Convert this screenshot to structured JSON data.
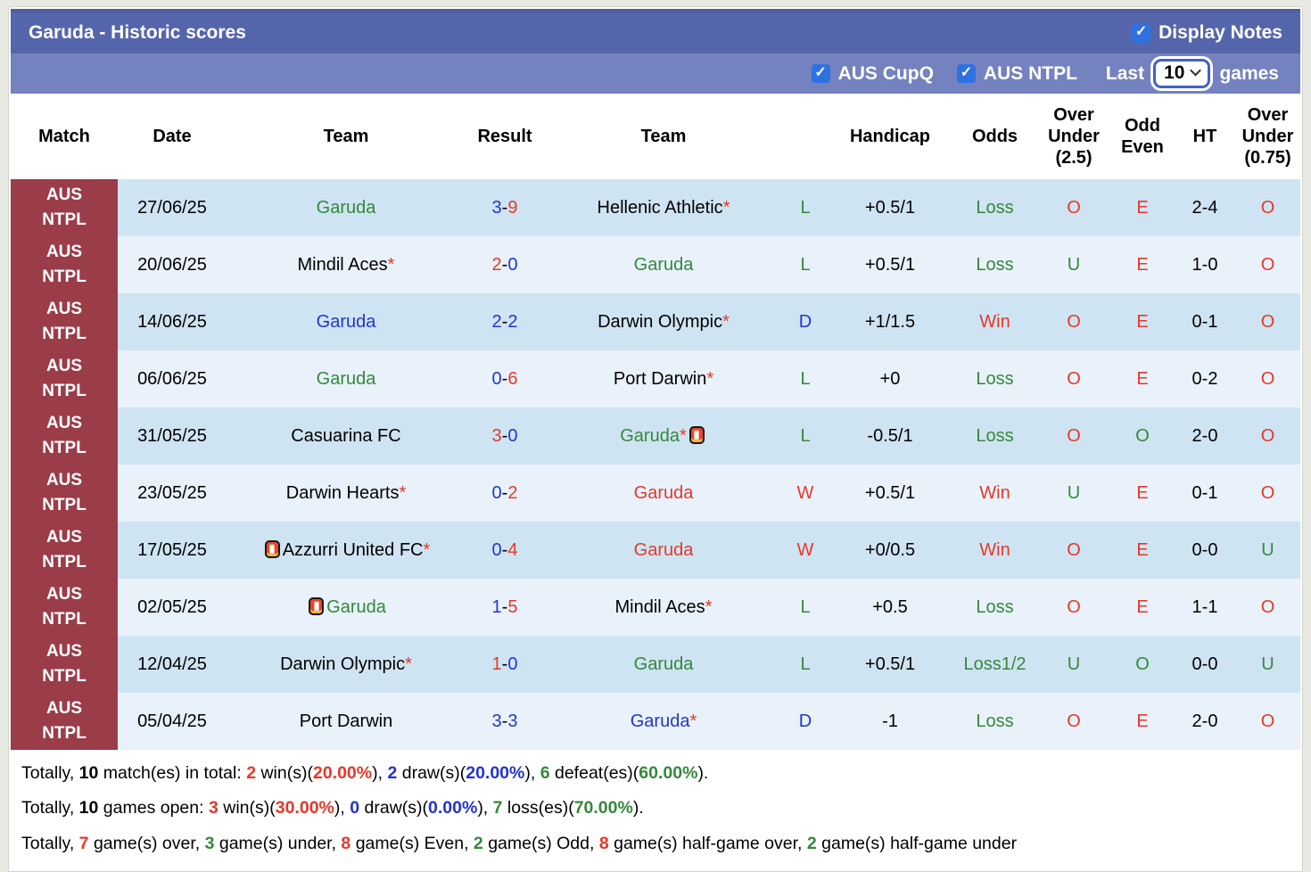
{
  "title_bar": {
    "title": "Garuda - Historic scores",
    "display_notes_label": "Display Notes",
    "display_notes_checked": true
  },
  "filter_bar": {
    "checkboxes": [
      {
        "label": "AUS CupQ",
        "checked": true
      },
      {
        "label": "AUS NTPL",
        "checked": true
      }
    ],
    "last_label": "Last",
    "games_count": "10",
    "games_label": "games"
  },
  "colors": {
    "red": "#e5382a",
    "green": "#35873c",
    "blue": "#2235cc",
    "black": "#000000",
    "badge_maroon": "#9b3c49",
    "title_bar_purple": "#5565ab",
    "filter_bar_purple": "#7482bf",
    "checkbox_blue": "#2e71e2",
    "row_odd": "#cfe4f2",
    "row_even": "#e9f2fa"
  },
  "table": {
    "headers": [
      "Match",
      "Date",
      "Team",
      "Result",
      "Team",
      "",
      "Handicap",
      "Odds",
      "Over\nUnder\n(2.5)",
      "Odd\nEven",
      "HT",
      "Over\nUnder\n(0.75)"
    ],
    "rows": [
      {
        "league": "AUS\nNTPL",
        "date": "27/06/25",
        "team1": {
          "text": "Garuda",
          "color": "green",
          "star": false,
          "card": "none"
        },
        "result": {
          "home": "3",
          "away": "9",
          "home_color": "blue",
          "away_color": "red"
        },
        "team2": {
          "text": "Hellenic Athletic",
          "color": "black",
          "star": true,
          "card": "none"
        },
        "wdl": {
          "text": "L",
          "color": "green"
        },
        "handicap": "+0.5/1",
        "odds": {
          "text": "Loss",
          "color": "green"
        },
        "over_under_25": {
          "text": "O",
          "color": "red"
        },
        "odd_even": {
          "text": "E",
          "color": "red"
        },
        "ht": "2-4",
        "over_under_075": {
          "text": "O",
          "color": "red"
        }
      },
      {
        "league": "AUS\nNTPL",
        "date": "20/06/25",
        "team1": {
          "text": "Mindil Aces",
          "color": "black",
          "star": true,
          "card": "none"
        },
        "result": {
          "home": "2",
          "away": "0",
          "home_color": "red",
          "away_color": "blue"
        },
        "team2": {
          "text": "Garuda",
          "color": "green",
          "star": false,
          "card": "none"
        },
        "wdl": {
          "text": "L",
          "color": "green"
        },
        "handicap": "+0.5/1",
        "odds": {
          "text": "Loss",
          "color": "green"
        },
        "over_under_25": {
          "text": "U",
          "color": "green"
        },
        "odd_even": {
          "text": "E",
          "color": "red"
        },
        "ht": "1-0",
        "over_under_075": {
          "text": "O",
          "color": "red"
        }
      },
      {
        "league": "AUS\nNTPL",
        "date": "14/06/25",
        "team1": {
          "text": "Garuda",
          "color": "blue",
          "star": false,
          "card": "none"
        },
        "result": {
          "home": "2",
          "away": "2",
          "home_color": "blue",
          "away_color": "blue"
        },
        "team2": {
          "text": "Darwin Olympic",
          "color": "black",
          "star": true,
          "card": "none"
        },
        "wdl": {
          "text": "D",
          "color": "blue"
        },
        "handicap": "+1/1.5",
        "odds": {
          "text": "Win",
          "color": "red"
        },
        "over_under_25": {
          "text": "O",
          "color": "red"
        },
        "odd_even": {
          "text": "E",
          "color": "red"
        },
        "ht": "0-1",
        "over_under_075": {
          "text": "O",
          "color": "red"
        }
      },
      {
        "league": "AUS\nNTPL",
        "date": "06/06/25",
        "team1": {
          "text": "Garuda",
          "color": "green",
          "star": false,
          "card": "none"
        },
        "result": {
          "home": "0",
          "away": "6",
          "home_color": "blue",
          "away_color": "red"
        },
        "team2": {
          "text": "Port Darwin",
          "color": "black",
          "star": true,
          "card": "none"
        },
        "wdl": {
          "text": "L",
          "color": "green"
        },
        "handicap": "+0",
        "odds": {
          "text": "Loss",
          "color": "green"
        },
        "over_under_25": {
          "text": "O",
          "color": "red"
        },
        "odd_even": {
          "text": "E",
          "color": "red"
        },
        "ht": "0-2",
        "over_under_075": {
          "text": "O",
          "color": "red"
        }
      },
      {
        "league": "AUS\nNTPL",
        "date": "31/05/25",
        "team1": {
          "text": "Casuarina FC",
          "color": "black",
          "star": false,
          "card": "none"
        },
        "result": {
          "home": "3",
          "away": "0",
          "home_color": "red",
          "away_color": "blue"
        },
        "team2": {
          "text": "Garuda",
          "color": "green",
          "star": true,
          "card": "after"
        },
        "wdl": {
          "text": "L",
          "color": "green"
        },
        "handicap": "-0.5/1",
        "odds": {
          "text": "Loss",
          "color": "green"
        },
        "over_under_25": {
          "text": "O",
          "color": "red"
        },
        "odd_even": {
          "text": "O",
          "color": "green"
        },
        "ht": "2-0",
        "over_under_075": {
          "text": "O",
          "color": "red"
        }
      },
      {
        "league": "AUS\nNTPL",
        "date": "23/05/25",
        "team1": {
          "text": "Darwin Hearts",
          "color": "black",
          "star": true,
          "card": "none"
        },
        "result": {
          "home": "0",
          "away": "2",
          "home_color": "blue",
          "away_color": "red"
        },
        "team2": {
          "text": "Garuda",
          "color": "red",
          "star": false,
          "card": "none"
        },
        "wdl": {
          "text": "W",
          "color": "red"
        },
        "handicap": "+0.5/1",
        "odds": {
          "text": "Win",
          "color": "red"
        },
        "over_under_25": {
          "text": "U",
          "color": "green"
        },
        "odd_even": {
          "text": "E",
          "color": "red"
        },
        "ht": "0-1",
        "over_under_075": {
          "text": "O",
          "color": "red"
        }
      },
      {
        "league": "AUS\nNTPL",
        "date": "17/05/25",
        "team1": {
          "text": "Azzurri United FC",
          "color": "black",
          "star": true,
          "card": "before"
        },
        "result": {
          "home": "0",
          "away": "4",
          "home_color": "blue",
          "away_color": "red"
        },
        "team2": {
          "text": "Garuda",
          "color": "red",
          "star": false,
          "card": "none"
        },
        "wdl": {
          "text": "W",
          "color": "red"
        },
        "handicap": "+0/0.5",
        "odds": {
          "text": "Win",
          "color": "red"
        },
        "over_under_25": {
          "text": "O",
          "color": "red"
        },
        "odd_even": {
          "text": "E",
          "color": "red"
        },
        "ht": "0-0",
        "over_under_075": {
          "text": "U",
          "color": "green"
        }
      },
      {
        "league": "AUS\nNTPL",
        "date": "02/05/25",
        "team1": {
          "text": "Garuda",
          "color": "green",
          "star": false,
          "card": "before"
        },
        "result": {
          "home": "1",
          "away": "5",
          "home_color": "blue",
          "away_color": "red"
        },
        "team2": {
          "text": "Mindil Aces",
          "color": "black",
          "star": true,
          "card": "none"
        },
        "wdl": {
          "text": "L",
          "color": "green"
        },
        "handicap": "+0.5",
        "odds": {
          "text": "Loss",
          "color": "green"
        },
        "over_under_25": {
          "text": "O",
          "color": "red"
        },
        "odd_even": {
          "text": "E",
          "color": "red"
        },
        "ht": "1-1",
        "over_under_075": {
          "text": "O",
          "color": "red"
        }
      },
      {
        "league": "AUS\nNTPL",
        "date": "12/04/25",
        "team1": {
          "text": "Darwin Olympic",
          "color": "black",
          "star": true,
          "card": "none"
        },
        "result": {
          "home": "1",
          "away": "0",
          "home_color": "red",
          "away_color": "blue"
        },
        "team2": {
          "text": "Garuda",
          "color": "green",
          "star": false,
          "card": "none"
        },
        "wdl": {
          "text": "L",
          "color": "green"
        },
        "handicap": "+0.5/1",
        "odds": {
          "text": "Loss1/2",
          "color": "green"
        },
        "over_under_25": {
          "text": "U",
          "color": "green"
        },
        "odd_even": {
          "text": "O",
          "color": "green"
        },
        "ht": "0-0",
        "over_under_075": {
          "text": "U",
          "color": "green"
        }
      },
      {
        "league": "AUS\nNTPL",
        "date": "05/04/25",
        "team1": {
          "text": "Port Darwin",
          "color": "black",
          "star": false,
          "card": "none"
        },
        "result": {
          "home": "3",
          "away": "3",
          "home_color": "blue",
          "away_color": "blue"
        },
        "team2": {
          "text": "Garuda",
          "color": "blue",
          "star": true,
          "card": "none"
        },
        "wdl": {
          "text": "D",
          "color": "blue"
        },
        "handicap": "-1",
        "odds": {
          "text": "Loss",
          "color": "green"
        },
        "over_under_25": {
          "text": "O",
          "color": "red"
        },
        "odd_even": {
          "text": "E",
          "color": "red"
        },
        "ht": "2-0",
        "over_under_075": {
          "text": "O",
          "color": "red"
        }
      }
    ]
  },
  "summary": {
    "lines": [
      [
        {
          "t": "Totally, "
        },
        {
          "t": "10",
          "b": 1
        },
        {
          "t": " match(es) in total: "
        },
        {
          "t": "2",
          "c": "red",
          "b": 1
        },
        {
          "t": " win(s)("
        },
        {
          "t": "20.00%",
          "c": "red",
          "b": 1
        },
        {
          "t": "), "
        },
        {
          "t": "2",
          "c": "blue",
          "b": 1
        },
        {
          "t": " draw(s)("
        },
        {
          "t": "20.00%",
          "c": "blue",
          "b": 1
        },
        {
          "t": "), "
        },
        {
          "t": "6",
          "c": "green",
          "b": 1
        },
        {
          "t": " defeat(es)("
        },
        {
          "t": "60.00%",
          "c": "green",
          "b": 1
        },
        {
          "t": ")."
        }
      ],
      [
        {
          "t": "Totally, "
        },
        {
          "t": "10",
          "b": 1
        },
        {
          "t": " games open: "
        },
        {
          "t": "3",
          "c": "red",
          "b": 1
        },
        {
          "t": " win(s)("
        },
        {
          "t": "30.00%",
          "c": "red",
          "b": 1
        },
        {
          "t": "), "
        },
        {
          "t": "0",
          "c": "blue",
          "b": 1
        },
        {
          "t": " draw(s)("
        },
        {
          "t": "0.00%",
          "c": "blue",
          "b": 1
        },
        {
          "t": "), "
        },
        {
          "t": "7",
          "c": "green",
          "b": 1
        },
        {
          "t": " loss(es)("
        },
        {
          "t": "70.00%",
          "c": "green",
          "b": 1
        },
        {
          "t": ")."
        }
      ],
      [
        {
          "t": "Totally, "
        },
        {
          "t": "7",
          "c": "red",
          "b": 1
        },
        {
          "t": " game(s) over, "
        },
        {
          "t": "3",
          "c": "green",
          "b": 1
        },
        {
          "t": " game(s) under, "
        },
        {
          "t": "8",
          "c": "red",
          "b": 1
        },
        {
          "t": " game(s) Even, "
        },
        {
          "t": "2",
          "c": "green",
          "b": 1
        },
        {
          "t": " game(s) Odd, "
        },
        {
          "t": "8",
          "c": "red",
          "b": 1
        },
        {
          "t": " game(s) half-game over, "
        },
        {
          "t": "2",
          "c": "green",
          "b": 1
        },
        {
          "t": " game(s) half-game under"
        }
      ]
    ]
  }
}
